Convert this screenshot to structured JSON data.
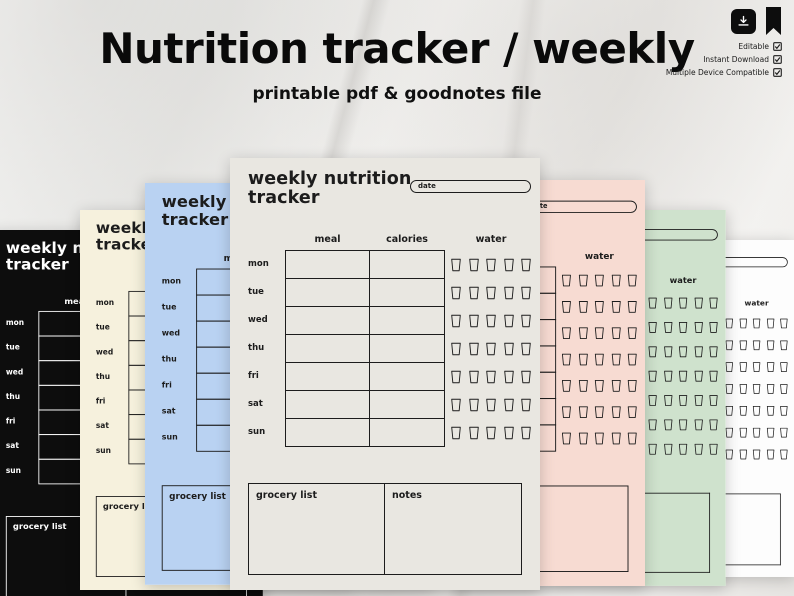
{
  "header": {
    "title": "Nutrition tracker / weekly",
    "subtitle": "printable pdf & goodnotes file",
    "features": [
      {
        "label": "Editable"
      },
      {
        "label": "Instant Download"
      },
      {
        "label": "Multiple Device Compatible"
      }
    ]
  },
  "planner": {
    "title_line1": "weekly nutrition",
    "title_line2": "tracker",
    "date_label": "date",
    "col_meal": "meal",
    "col_calories": "calories",
    "col_water": "water",
    "days": [
      "mon",
      "tue",
      "wed",
      "thu",
      "fri",
      "sat",
      "sun"
    ],
    "cups_per_day": 5,
    "grocery_label": "grocery list",
    "notes_label": "notes"
  },
  "pages": [
    {
      "name": "black",
      "bg": "#0d0d0d",
      "fg": "#ffffff"
    },
    {
      "name": "cream",
      "bg": "#f6f1dd",
      "fg": "#1c1c1c"
    },
    {
      "name": "blue",
      "bg": "#b9d2f2",
      "fg": "#1c1c1c"
    },
    {
      "name": "gray",
      "bg": "#e9e7e1",
      "fg": "#1c1c1c"
    },
    {
      "name": "pink",
      "bg": "#f7dbd2",
      "fg": "#1c1c1c"
    },
    {
      "name": "green",
      "bg": "#cfe2cd",
      "fg": "#1c1c1c"
    },
    {
      "name": "white",
      "bg": "#fdfdfd",
      "fg": "#1c1c1c"
    }
  ],
  "colors": {
    "accent": "#0d0d0d",
    "background": "#f1efec"
  }
}
